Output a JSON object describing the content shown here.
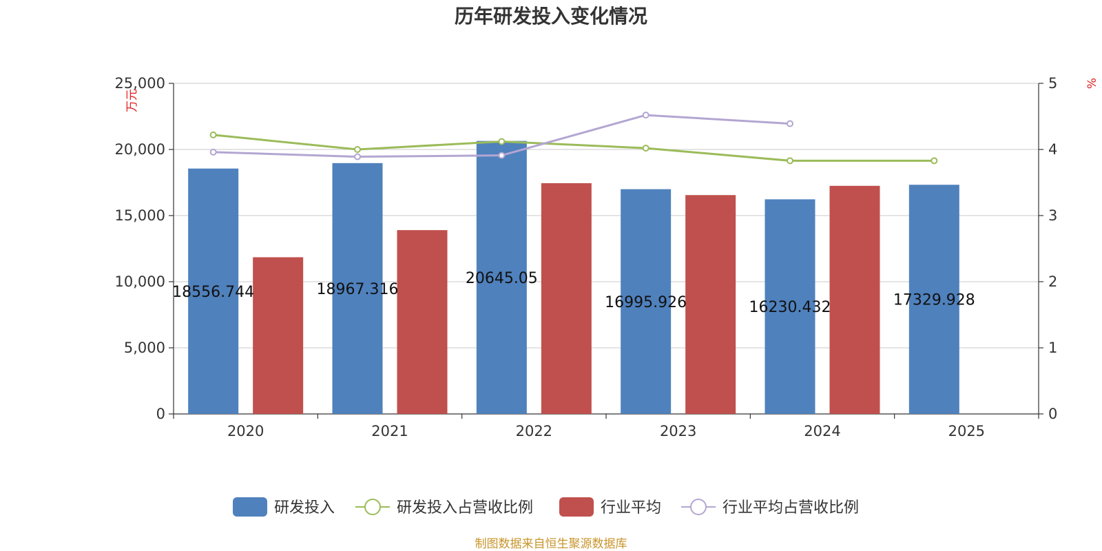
{
  "chart_data": {
    "type": "bar",
    "title": "历年研发投入变化情况",
    "categories": [
      "2020",
      "2021",
      "2022",
      "2023",
      "2024",
      "2025"
    ],
    "left_axis": {
      "unit": "万元",
      "ylim": [
        0,
        25000
      ],
      "ticks": [
        "0",
        "5,000",
        "10,000",
        "15,000",
        "20,000",
        "25,000"
      ],
      "tick_values": [
        0,
        5000,
        10000,
        15000,
        20000,
        25000
      ]
    },
    "right_axis": {
      "unit": "%",
      "ylim": [
        0,
        5
      ],
      "ticks": [
        "0",
        "1",
        "2",
        "3",
        "4",
        "5"
      ],
      "tick_values": [
        0,
        1,
        2,
        3,
        4,
        5
      ]
    },
    "grid": true,
    "legend_position": "bottom",
    "series": [
      {
        "name": "研发投入",
        "type": "bar",
        "axis": "left",
        "color": "#4f81bd",
        "values": [
          18556.744,
          18967.316,
          20645.05,
          16995.926,
          16230.432,
          17329.928
        ],
        "labels": [
          "18556.744",
          "18967.316",
          "20645.05",
          "16995.926",
          "16230.432",
          "17329.928"
        ]
      },
      {
        "name": "研发投入占营收比例",
        "type": "line",
        "axis": "right",
        "color": "#9bbb59",
        "values": [
          4.22,
          4.0,
          4.12,
          4.02,
          3.83,
          3.83
        ]
      },
      {
        "name": "行业平均",
        "type": "bar",
        "axis": "left",
        "color": "#c0504d",
        "values": [
          11850,
          13900,
          17450,
          16550,
          17250,
          null
        ]
      },
      {
        "name": "行业平均占营收比例",
        "type": "line",
        "axis": "right",
        "color": "#b3a6d2",
        "values": [
          3.96,
          3.89,
          3.91,
          4.52,
          4.39,
          null
        ]
      }
    ],
    "source": "制图数据来自恒生聚源数据库"
  }
}
